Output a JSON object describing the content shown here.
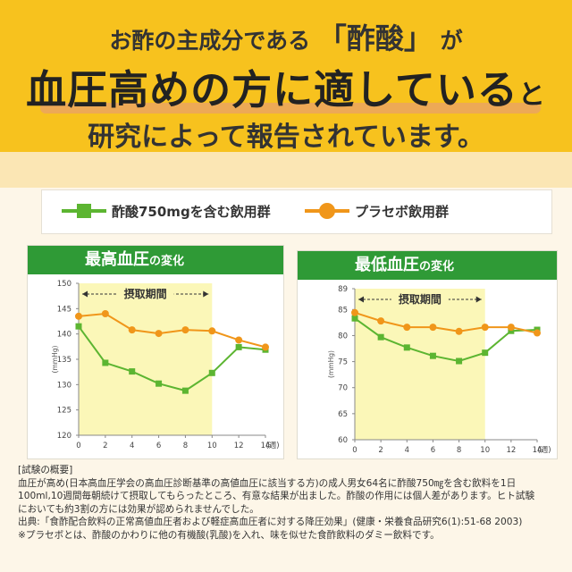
{
  "headline": {
    "line1_pre": "お酢の主成分である",
    "line1_accent": "「酢酸」",
    "line1_post": "が",
    "line2_main": "血圧高めの方に適している",
    "line2_tail": "と",
    "line3": "研究によって報告されています。"
  },
  "legend": {
    "acetic": "酢酸750mgを含む飲用群",
    "placebo": "プラセボ飲用群"
  },
  "colors": {
    "acetic": "#5cb531",
    "placebo": "#f0961a",
    "period": "#fbf7b8",
    "header": "#f7c21e",
    "panel_title": "#2f9a36"
  },
  "chart_data": [
    {
      "type": "line",
      "title_main": "最高血圧",
      "title_tail": "の変化",
      "ylabel": "(mmHg)",
      "xunit": "(週)",
      "ylim": [
        120,
        150
      ],
      "yticks": [
        120,
        125,
        130,
        135,
        140,
        145,
        150
      ],
      "xticks": [
        0,
        2,
        4,
        6,
        8,
        10,
        12,
        14
      ],
      "period_label": "摂取期間",
      "period_range": [
        0,
        10
      ],
      "x": [
        0,
        2,
        4,
        6,
        8,
        10,
        12,
        14
      ],
      "series": [
        {
          "name": "酢酸750mgを含む飲用群",
          "marker": "square",
          "values": [
            141.5,
            134.3,
            132.6,
            130.2,
            128.8,
            132.3,
            137.4,
            136.9
          ]
        },
        {
          "name": "プラセボ飲用群",
          "marker": "circle",
          "values": [
            143.5,
            144.0,
            140.8,
            140.1,
            140.8,
            140.6,
            138.8,
            137.4
          ]
        }
      ]
    },
    {
      "type": "line",
      "title_main": "最低血圧",
      "title_tail": "の変化",
      "ylabel": "(mmHg)",
      "xunit": "(週)",
      "ylim": [
        60,
        89
      ],
      "yticks": [
        60,
        65,
        70,
        75,
        80,
        85,
        89
      ],
      "xticks": [
        0,
        2,
        4,
        6,
        8,
        10,
        12,
        14
      ],
      "period_label": "摂取期間",
      "period_range": [
        0,
        10
      ],
      "x": [
        0,
        2,
        4,
        6,
        8,
        10,
        12,
        14
      ],
      "series": [
        {
          "name": "酢酸750mgを含む飲用群",
          "marker": "square",
          "values": [
            83.3,
            79.7,
            77.7,
            76.1,
            75.1,
            76.7,
            80.9,
            81.1
          ]
        },
        {
          "name": "プラセボ飲用群",
          "marker": "circle",
          "values": [
            84.4,
            82.8,
            81.6,
            81.6,
            80.8,
            81.6,
            81.6,
            80.5
          ]
        }
      ]
    }
  ],
  "notes": [
    "[試験の概要]",
    "血圧が高め(日本高血圧学会の高血圧診断基準の高値血圧に該当する方)の成人男女64名に酢酸750㎎を含む飲料を1日",
    "100ml,10週間毎朝続けて摂取してもらったところ、有意な結果が出ました。酢酸の作用には個人差があります。ヒト試験",
    "においても約3割の方には効果が認められませんでした。",
    "出典:「食酢配合飲料の正常高値血圧者および軽症高血圧者に対する降圧効果」(健康・栄養食品研究6(1):51-68 2003)",
    "※プラセボとは、酢酸のかわりに他の有機酸(乳酸)を入れ、味を似せた食酢飲料のダミー飲料です。"
  ]
}
